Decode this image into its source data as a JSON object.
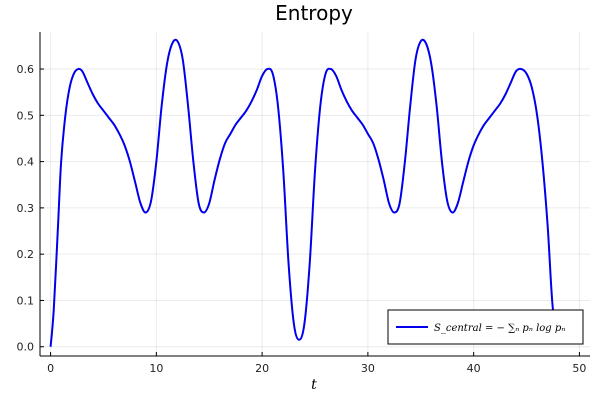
{
  "chart_data": {
    "type": "line",
    "title": "Entropy",
    "xlabel": "t",
    "ylabel": "",
    "xlim": [
      -1,
      51
    ],
    "ylim": [
      -0.02,
      0.68
    ],
    "xticks": [
      0,
      10,
      20,
      30,
      40,
      50
    ],
    "yticks": [
      0.0,
      0.1,
      0.2,
      0.3,
      0.4,
      0.5,
      0.6
    ],
    "xtick_labels": [
      "0",
      "10",
      "20",
      "30",
      "40",
      "50"
    ],
    "ytick_labels": [
      "0.0",
      "0.1",
      "0.2",
      "0.3",
      "0.4",
      "0.5",
      "0.6"
    ],
    "grid": true,
    "legend_position": "bottom-right",
    "series": [
      {
        "name": "S_central = − ∑ₙ pₙ log pₙ",
        "color": "#0000ee",
        "x": [
          0,
          0.3,
          0.7,
          1.0,
          1.4,
          1.8,
          2.2,
          2.6,
          3.0,
          3.5,
          4.0,
          4.5,
          5.0,
          5.5,
          6.0,
          6.5,
          7.0,
          7.5,
          8.0,
          8.5,
          9.0,
          9.5,
          10.0,
          10.5,
          11.0,
          11.5,
          12.0,
          12.5,
          13.0,
          13.5,
          14.0,
          14.5,
          15.0,
          15.5,
          16.0,
          16.5,
          17.0,
          17.5,
          18.0,
          18.5,
          19.0,
          19.5,
          20.0,
          20.5,
          21.0,
          21.5,
          22.0,
          22.5,
          23.0,
          23.5,
          24.0,
          24.5,
          25.0,
          25.5,
          26.0,
          26.5,
          27.0,
          27.5,
          28.0,
          28.5,
          29.0,
          29.5,
          30.0,
          30.5,
          31.0,
          31.5,
          32.0,
          32.5,
          33.0,
          33.5,
          34.0,
          34.5,
          35.0,
          35.5,
          36.0,
          36.5,
          37.0,
          37.5,
          38.0,
          38.5,
          39.0,
          39.5,
          40.0,
          40.5,
          41.0,
          41.5,
          42.0,
          42.5,
          43.0,
          43.5,
          44.0,
          44.5,
          45.0,
          45.5,
          46.0,
          46.5,
          47.0,
          47.5,
          48.0,
          48.5,
          49.0,
          49.5,
          50.0
        ],
        "y": [
          0.0,
          0.08,
          0.26,
          0.4,
          0.5,
          0.56,
          0.59,
          0.6,
          0.595,
          0.57,
          0.545,
          0.525,
          0.51,
          0.495,
          0.48,
          0.46,
          0.435,
          0.4,
          0.355,
          0.31,
          0.29,
          0.315,
          0.4,
          0.52,
          0.61,
          0.655,
          0.66,
          0.62,
          0.52,
          0.4,
          0.31,
          0.29,
          0.31,
          0.36,
          0.405,
          0.44,
          0.46,
          0.48,
          0.495,
          0.51,
          0.53,
          0.555,
          0.585,
          0.6,
          0.59,
          0.52,
          0.38,
          0.18,
          0.05,
          0.015,
          0.05,
          0.18,
          0.38,
          0.52,
          0.59,
          0.6,
          0.585,
          0.555,
          0.53,
          0.51,
          0.495,
          0.48,
          0.46,
          0.44,
          0.405,
          0.36,
          0.31,
          0.29,
          0.31,
          0.4,
          0.52,
          0.62,
          0.66,
          0.655,
          0.61,
          0.52,
          0.4,
          0.315,
          0.29,
          0.31,
          0.355,
          0.4,
          0.435,
          0.46,
          0.48,
          0.495,
          0.51,
          0.525,
          0.545,
          0.57,
          0.595,
          0.6,
          0.59,
          0.56,
          0.5,
          0.4,
          0.26,
          0.08,
          0.07,
          0.07,
          0.07,
          0.07,
          0.07
        ]
      }
    ]
  }
}
